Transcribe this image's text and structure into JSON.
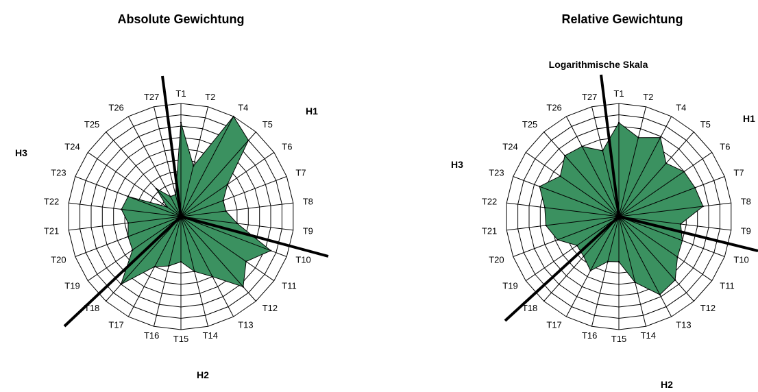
{
  "chart_data": [
    {
      "type": "radar",
      "title": "Absolute Gewichtung",
      "subtitle": "",
      "categories": [
        "T1",
        "T2",
        "T4",
        "T5",
        "T6",
        "T7",
        "T8",
        "T9",
        "T10",
        "T11",
        "T12",
        "T13",
        "T14",
        "T15",
        "T16",
        "T17",
        "T18",
        "T19",
        "T20",
        "T21",
        "T22",
        "T23",
        "T24",
        "T25",
        "T26",
        "T27"
      ],
      "values": [
        8.3,
        4.6,
        10.0,
        9.0,
        5.0,
        4.0,
        4.0,
        5.0,
        8.5,
        7.0,
        8.3,
        6.0,
        5.0,
        4.0,
        4.5,
        5.0,
        8.0,
        5.2,
        5.0,
        4.7,
        5.3,
        5.0,
        1.5,
        3.3,
        2.0,
        2.0
      ],
      "rings": 10,
      "scale": "linear",
      "grid": true,
      "color": "#3b9160",
      "axis_labels": [
        "H1",
        "H2",
        "H3"
      ]
    },
    {
      "type": "radar",
      "title": "Relative Gewichtung",
      "subtitle": "Logarithmische Skala",
      "categories": [
        "T1",
        "T2",
        "T4",
        "T5",
        "T6",
        "T7",
        "T8",
        "T9",
        "T10",
        "T11",
        "T12",
        "T13",
        "T14",
        "T15",
        "T16",
        "T17",
        "T18",
        "T19",
        "T20",
        "T21",
        "T22",
        "T23",
        "T24",
        "T25",
        "T26",
        "T27"
      ],
      "values": [
        8.3,
        7.2,
        7.9,
        6.3,
        7.0,
        7.2,
        7.5,
        5.5,
        6.0,
        6.3,
        7.5,
        7.8,
        6.0,
        4.0,
        4.1,
        5.4,
        4.7,
        4.5,
        5.8,
        6.5,
        6.6,
        7.5,
        6.3,
        7.2,
        7.0,
        6.0
      ],
      "rings": 10,
      "scale": "log",
      "grid": true,
      "color": "#3b9160",
      "axis_labels": [
        "H1",
        "H2",
        "H3"
      ]
    }
  ]
}
